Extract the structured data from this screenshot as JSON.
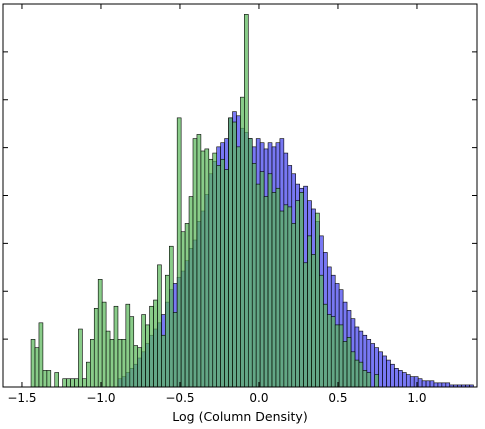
{
  "chart_data": {
    "type": "histogram",
    "title": "",
    "xlabel": "Log (Column Density)",
    "ylabel": "",
    "xlim": [
      -1.62,
      1.38
    ],
    "ylim": [
      0,
      185
    ],
    "xticks": [
      -1.5,
      -1.0,
      -0.5,
      0.0,
      0.5,
      1.0
    ],
    "xtick_labels": [
      "−1.5",
      "−1.0",
      "−0.5",
      "0.0",
      "0.5",
      "1.0"
    ],
    "ytick_count": 8,
    "ytick_labels_shown": false,
    "grid": false,
    "legend": "none",
    "series": [
      {
        "color": "#4444ee",
        "bin_width": 0.025,
        "x": [
          -0.88,
          -0.855,
          -0.83,
          -0.805,
          -0.78,
          -0.755,
          -0.73,
          -0.705,
          -0.68,
          -0.655,
          -0.63,
          -0.605,
          -0.58,
          -0.555,
          -0.53,
          -0.505,
          -0.48,
          -0.455,
          -0.43,
          -0.405,
          -0.38,
          -0.355,
          -0.33,
          -0.305,
          -0.28,
          -0.255,
          -0.23,
          -0.205,
          -0.18,
          -0.155,
          -0.13,
          -0.105,
          -0.08,
          -0.055,
          -0.03,
          -0.005,
          0.02,
          0.045,
          0.07,
          0.095,
          0.12,
          0.145,
          0.17,
          0.195,
          0.22,
          0.245,
          0.27,
          0.295,
          0.32,
          0.345,
          0.37,
          0.395,
          0.42,
          0.445,
          0.47,
          0.495,
          0.52,
          0.545,
          0.57,
          0.595,
          0.62,
          0.645,
          0.67,
          0.695,
          0.72,
          0.745,
          0.77,
          0.795,
          0.82,
          0.845,
          0.87,
          0.895,
          0.92,
          0.945,
          0.97,
          0.995,
          1.02,
          1.045,
          1.07,
          1.095,
          1.12,
          1.145,
          1.17,
          1.195,
          1.22,
          1.245,
          1.27,
          1.295,
          1.32,
          1.345
        ],
        "values": [
          4,
          5,
          7,
          9,
          11,
          14,
          17,
          21,
          25,
          28,
          31,
          35,
          41,
          47,
          50,
          53,
          56,
          61,
          67,
          71,
          80,
          85,
          93,
          103,
          109,
          116,
          118,
          120,
          130,
          133,
          131,
          125,
          123,
          120,
          116,
          120,
          118,
          115,
          118,
          116,
          118,
          120,
          113,
          107,
          103,
          98,
          96,
          97,
          90,
          86,
          80,
          73,
          65,
          58,
          54,
          50,
          47,
          41,
          37,
          33,
          29,
          27,
          25,
          23,
          21,
          19,
          17,
          15,
          13,
          11,
          9,
          8,
          7,
          6,
          5,
          5,
          4,
          3,
          3,
          3,
          2,
          2,
          2,
          2,
          1,
          1,
          1,
          1,
          1,
          1
        ]
      },
      {
        "color": "#5cb85c",
        "bin_width": 0.025,
        "x": [
          -1.43,
          -1.405,
          -1.38,
          -1.355,
          -1.33,
          -1.305,
          -1.28,
          -1.255,
          -1.23,
          -1.205,
          -1.18,
          -1.155,
          -1.13,
          -1.105,
          -1.08,
          -1.055,
          -1.03,
          -1.005,
          -0.98,
          -0.955,
          -0.93,
          -0.905,
          -0.88,
          -0.855,
          -0.83,
          -0.805,
          -0.78,
          -0.755,
          -0.73,
          -0.705,
          -0.68,
          -0.655,
          -0.63,
          -0.605,
          -0.58,
          -0.555,
          -0.53,
          -0.505,
          -0.48,
          -0.455,
          -0.43,
          -0.405,
          -0.38,
          -0.355,
          -0.33,
          -0.305,
          -0.28,
          -0.255,
          -0.23,
          -0.205,
          -0.18,
          -0.155,
          -0.13,
          -0.105,
          -0.08,
          -0.055,
          -0.03,
          -0.005,
          0.02,
          0.045,
          0.07,
          0.095,
          0.12,
          0.145,
          0.17,
          0.195,
          0.22,
          0.245,
          0.27,
          0.295,
          0.32,
          0.345,
          0.37,
          0.395,
          0.42,
          0.445,
          0.47,
          0.495,
          0.52,
          0.545,
          0.57,
          0.595,
          0.62,
          0.645,
          0.67,
          0.695,
          0.72,
          0.745
        ],
        "values": [
          23,
          19,
          31,
          8,
          8,
          0,
          7,
          0,
          4,
          4,
          4,
          4,
          28,
          4,
          12,
          23,
          38,
          52,
          41,
          27,
          23,
          39,
          23,
          23,
          40,
          34,
          20,
          19,
          35,
          30,
          39,
          42,
          59,
          25,
          54,
          68,
          36,
          130,
          75,
          79,
          92,
          120,
          122,
          114,
          115,
          110,
          113,
          107,
          110,
          105,
          130,
          128,
          116,
          140,
          180,
          120,
          108,
          98,
          104,
          92,
          103,
          94,
          96,
          85,
          88,
          87,
          79,
          90,
          94,
          60,
          73,
          64,
          84,
          54,
          40,
          35,
          34,
          30,
          30,
          22,
          24,
          17,
          13,
          12,
          8,
          7,
          0,
          6
        ]
      }
    ]
  }
}
